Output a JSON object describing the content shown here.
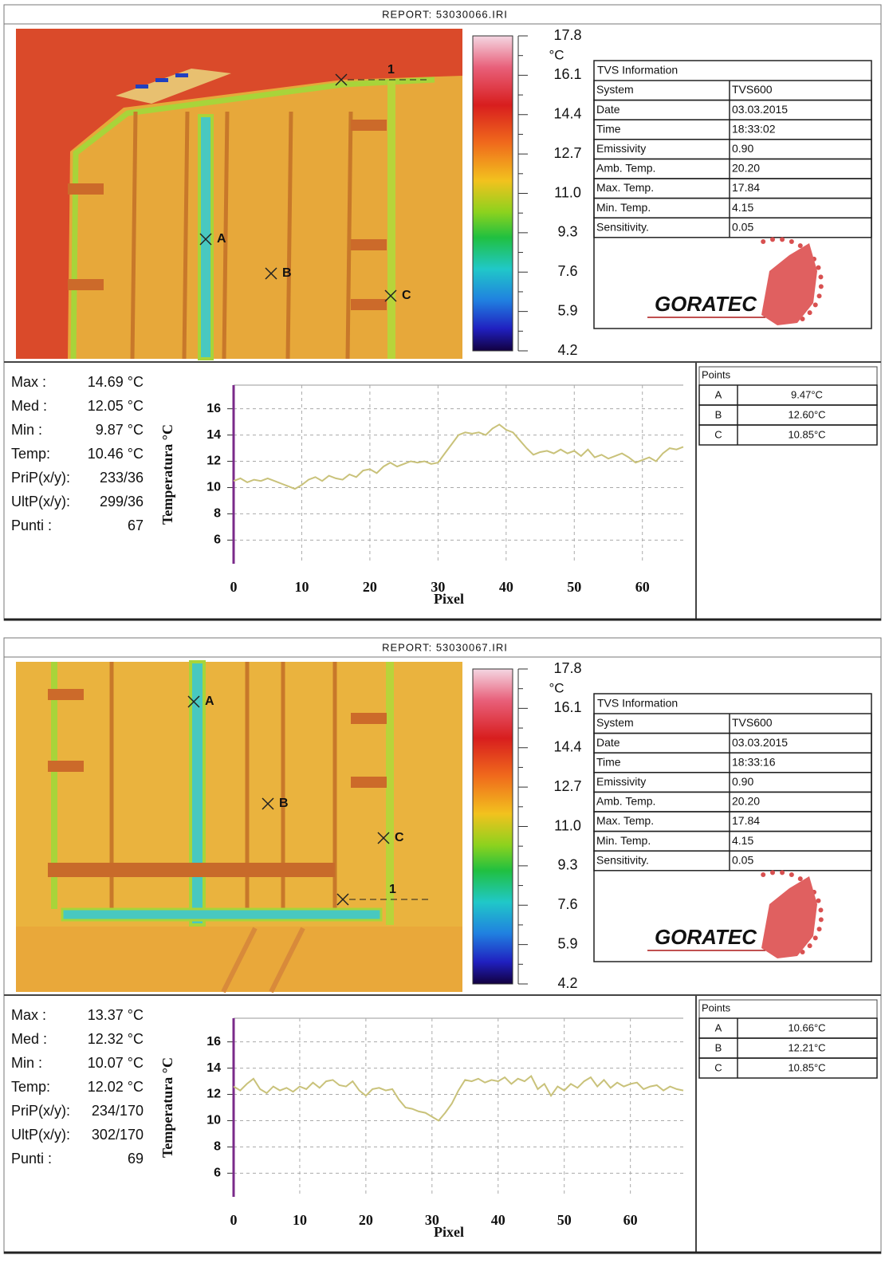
{
  "reports": [
    {
      "title": "REPORT: 53030066.IRI",
      "colorbar": {
        "unit": "°C",
        "ticks": [
          17.8,
          16.1,
          14.4,
          12.7,
          {
            "value": 11,
            "label": "11.0"
          },
          9.3,
          7.6,
          5.9,
          4.2
        ]
      },
      "markers": [
        "A",
        "B",
        "C",
        "1"
      ],
      "info": {
        "title": "TVS Information",
        "rows": [
          [
            "System",
            "TVS600"
          ],
          [
            "Date",
            "03.03.2015"
          ],
          [
            "Time",
            "18:33:02"
          ],
          [
            "Emissivity",
            "0.90"
          ],
          [
            "Amb. Temp.",
            "20.20"
          ],
          [
            "Max. Temp.",
            "17.84"
          ],
          [
            "Min. Temp.",
            "4.15"
          ],
          [
            "Sensitivity.",
            "0.05"
          ]
        ]
      },
      "logo": "GORATEC",
      "stats": [
        [
          "Max :",
          "14.69 °C"
        ],
        [
          "Med :",
          "12.05 °C"
        ],
        [
          "Min :",
          "9.87 °C"
        ],
        [
          "Temp:",
          "10.46 °C"
        ],
        [
          "PriP(x/y):",
          "233/36"
        ],
        [
          "UltP(x/y):",
          "299/36"
        ],
        [
          "Punti :",
          "67"
        ]
      ],
      "points": {
        "title": "Points",
        "rows": [
          [
            "A",
            "9.47°C"
          ],
          [
            "B",
            "12.60°C"
          ],
          [
            "C",
            "10.85°C"
          ]
        ]
      }
    },
    {
      "title": "REPORT: 53030067.IRI",
      "colorbar": {
        "unit": "°C",
        "ticks": [
          17.8,
          16.1,
          14.4,
          12.7,
          {
            "value": 11,
            "label": "11.0"
          },
          9.3,
          7.6,
          5.9,
          4.2
        ]
      },
      "markers": [
        "A",
        "B",
        "C",
        "1"
      ],
      "info": {
        "title": "TVS Information",
        "rows": [
          [
            "System",
            "TVS600"
          ],
          [
            "Date",
            "03.03.2015"
          ],
          [
            "Time",
            "18:33:16"
          ],
          [
            "Emissivity",
            "0.90"
          ],
          [
            "Amb. Temp.",
            "20.20"
          ],
          [
            "Max. Temp.",
            "17.84"
          ],
          [
            "Min. Temp.",
            "4.15"
          ],
          [
            "Sensitivity.",
            "0.05"
          ]
        ]
      },
      "logo": "GORATEC",
      "stats": [
        [
          "Max :",
          "13.37 °C"
        ],
        [
          "Med :",
          "12.32 °C"
        ],
        [
          "Min :",
          "10.07 °C"
        ],
        [
          "Temp:",
          "12.02 °C"
        ],
        [
          "PriP(x/y):",
          "234/170"
        ],
        [
          "UltP(x/y):",
          "302/170"
        ],
        [
          "Punti :",
          "69"
        ]
      ],
      "points": {
        "title": "Points",
        "rows": [
          [
            "A",
            "10.66°C"
          ],
          [
            "B",
            "12.21°C"
          ],
          [
            "C",
            "10.85°C"
          ]
        ]
      }
    }
  ],
  "chart_data": [
    {
      "type": "line",
      "x_label": "Pixel",
      "y_label": "Temperatura °C",
      "color": "#c9c27a",
      "grid": true,
      "x": [
        0,
        1,
        2,
        3,
        4,
        5,
        6,
        7,
        8,
        9,
        10,
        11,
        12,
        13,
        14,
        15,
        16,
        17,
        18,
        19,
        20,
        21,
        22,
        23,
        24,
        25,
        26,
        27,
        28,
        29,
        30,
        31,
        32,
        33,
        34,
        35,
        36,
        37,
        38,
        39,
        40,
        41,
        42,
        43,
        44,
        45,
        46,
        47,
        48,
        49,
        50,
        51,
        52,
        53,
        54,
        55,
        56,
        57,
        58,
        59,
        60,
        61,
        62,
        63,
        64,
        65,
        66
      ],
      "values": [
        10.5,
        10.7,
        10.4,
        10.6,
        10.5,
        10.7,
        10.5,
        10.3,
        10.1,
        9.9,
        10.2,
        10.6,
        10.8,
        10.5,
        10.9,
        10.7,
        10.6,
        11.0,
        10.8,
        11.3,
        11.4,
        11.1,
        11.6,
        11.9,
        11.6,
        11.8,
        12.0,
        11.9,
        12.0,
        11.8,
        11.9,
        12.6,
        13.3,
        14.0,
        14.2,
        14.1,
        14.2,
        14.0,
        14.5,
        14.8,
        14.4,
        14.2,
        13.6,
        13.0,
        12.5,
        12.7,
        12.8,
        12.6,
        12.9,
        12.6,
        12.8,
        12.4,
        12.9,
        12.3,
        12.5,
        12.2,
        12.4,
        12.6,
        12.3,
        11.9,
        12.1,
        12.3,
        12.0,
        12.6,
        13.0,
        12.9,
        13.1
      ],
      "xlim": [
        0,
        66
      ],
      "ylim": [
        4.2,
        17.8
      ],
      "xticks": [
        0,
        10,
        20,
        30,
        40,
        50,
        60
      ],
      "yticks": [
        6,
        8,
        10,
        12,
        14,
        16
      ]
    },
    {
      "type": "line",
      "x_label": "Pixel",
      "y_label": "Temperatura °C",
      "color": "#c9c27a",
      "grid": true,
      "x": [
        0,
        1,
        2,
        3,
        4,
        5,
        6,
        7,
        8,
        9,
        10,
        11,
        12,
        13,
        14,
        15,
        16,
        17,
        18,
        19,
        20,
        21,
        22,
        23,
        24,
        25,
        26,
        27,
        28,
        29,
        30,
        31,
        32,
        33,
        34,
        35,
        36,
        37,
        38,
        39,
        40,
        41,
        42,
        43,
        44,
        45,
        46,
        47,
        48,
        49,
        50,
        51,
        52,
        53,
        54,
        55,
        56,
        57,
        58,
        59,
        60,
        61,
        62,
        63,
        64,
        65,
        66,
        67,
        68
      ],
      "values": [
        12.6,
        12.3,
        12.8,
        13.2,
        12.4,
        12.1,
        12.6,
        12.3,
        12.5,
        12.2,
        12.6,
        12.4,
        12.9,
        12.5,
        13.0,
        13.1,
        12.7,
        12.6,
        13.0,
        12.3,
        11.9,
        12.4,
        12.5,
        12.3,
        12.4,
        11.6,
        11.0,
        10.9,
        10.7,
        10.6,
        10.3,
        10.0,
        10.6,
        11.3,
        12.3,
        13.1,
        13.0,
        13.2,
        12.9,
        13.1,
        13.0,
        13.3,
        12.8,
        13.2,
        13.0,
        13.4,
        12.4,
        12.8,
        11.9,
        12.6,
        12.3,
        12.8,
        12.5,
        13.0,
        13.3,
        12.6,
        13.1,
        12.5,
        12.9,
        12.6,
        12.8,
        12.9,
        12.4,
        12.6,
        12.7,
        12.3,
        12.6,
        12.4,
        12.3
      ],
      "xlim": [
        0,
        68
      ],
      "ylim": [
        4.2,
        17.8
      ],
      "xticks": [
        0,
        10,
        20,
        30,
        40,
        50,
        60
      ],
      "yticks": [
        6,
        8,
        10,
        12,
        14,
        16
      ]
    }
  ]
}
